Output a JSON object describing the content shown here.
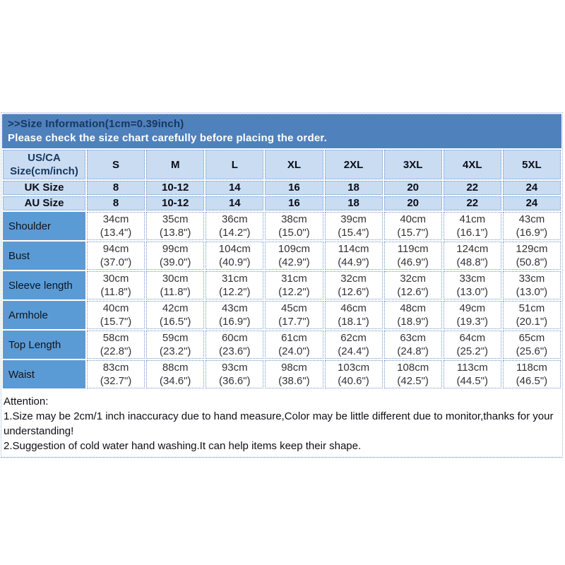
{
  "banner": {
    "title": ">>Size Information(1cm=0.39inch)",
    "subtitle": "Please check the size chart carefully before placing the order."
  },
  "size_chart": {
    "header": {
      "label_line1": "US/CA",
      "label_line2": "Size(cm/inch)",
      "sizes": [
        "S",
        "M",
        "L",
        "XL",
        "2XL",
        "3XL",
        "4XL",
        "5XL"
      ]
    },
    "uk_row": {
      "label": "UK Size",
      "values": [
        "8",
        "10-12",
        "14",
        "16",
        "18",
        "20",
        "22",
        "24"
      ]
    },
    "au_row": {
      "label": "AU Size",
      "values": [
        "8",
        "10-12",
        "14",
        "16",
        "18",
        "20",
        "22",
        "24"
      ]
    },
    "measurements": [
      {
        "label": "Shoulder",
        "cm": [
          "34cm",
          "35cm",
          "36cm",
          "38cm",
          "39cm",
          "40cm",
          "41cm",
          "43cm"
        ],
        "inch": [
          "(13.4\")",
          "(13.8\")",
          "(14.2\")",
          "(15.0\")",
          "(15.4\")",
          "(15.7\")",
          "(16.1\")",
          "(16.9\")"
        ]
      },
      {
        "label": "Bust",
        "cm": [
          "94cm",
          "99cm",
          "104cm",
          "109cm",
          "114cm",
          "119cm",
          "124cm",
          "129cm"
        ],
        "inch": [
          "(37.0\")",
          "(39.0\")",
          "(40.9\")",
          "(42.9\")",
          "(44.9\")",
          "(46.9\")",
          "(48.8\")",
          "(50.8\")"
        ]
      },
      {
        "label": "Sleeve length",
        "cm": [
          "30cm",
          "30cm",
          "31cm",
          "31cm",
          "32cm",
          "32cm",
          "33cm",
          "33cm"
        ],
        "inch": [
          "(11.8\")",
          "(11.8\")",
          "(12.2\")",
          "(12.2\")",
          "(12.6\")",
          "(12.6\")",
          "(13.0\")",
          "(13.0\")"
        ]
      },
      {
        "label": "Armhole",
        "cm": [
          "40cm",
          "42cm",
          "43cm",
          "45cm",
          "46cm",
          "48cm",
          "49cm",
          "51cm"
        ],
        "inch": [
          "(15.7\")",
          "(16.5\")",
          "(16.9\")",
          "(17.7\")",
          "(18.1\")",
          "(18.9\")",
          "(19.3\")",
          "(20.1\")"
        ]
      },
      {
        "label": "Top Length",
        "cm": [
          "58cm",
          "59cm",
          "60cm",
          "61cm",
          "62cm",
          "63cm",
          "64cm",
          "65cm"
        ],
        "inch": [
          "(22.8\")",
          "(23.2\")",
          "(23.6\")",
          "(24.0\")",
          "(24.4\")",
          "(24.8\")",
          "(25.2\")",
          "(25.6\")"
        ]
      },
      {
        "label": "Waist",
        "cm": [
          "83cm",
          "88cm",
          "93cm",
          "98cm",
          "103cm",
          "108cm",
          "113cm",
          "118cm"
        ],
        "inch": [
          "(32.7\")",
          "(34.6\")",
          "(36.6\")",
          "(38.6\")",
          "(40.6\")",
          "(42.5\")",
          "(44.5\")",
          "(46.5\")"
        ]
      }
    ]
  },
  "attention": {
    "lines": [
      "Attention:",
      "1.Size may be 2cm/1 inch inaccuracy due to hand measure,Color may be little different due to monitor,thanks for your",
      "understanding!",
      "2.Suggestion of cold water hand washing.It can help items keep their shape."
    ]
  },
  "colors": {
    "banner_bg": "#4f81bd",
    "banner_title": "#17375e",
    "header_cell_bg": "#c9dcf2",
    "label_cell_bg": "#5b9bd5",
    "cell_border": "#7096c8",
    "outer_border": "#9fb9d6",
    "outer_border_dark": "#4e7ba6"
  }
}
